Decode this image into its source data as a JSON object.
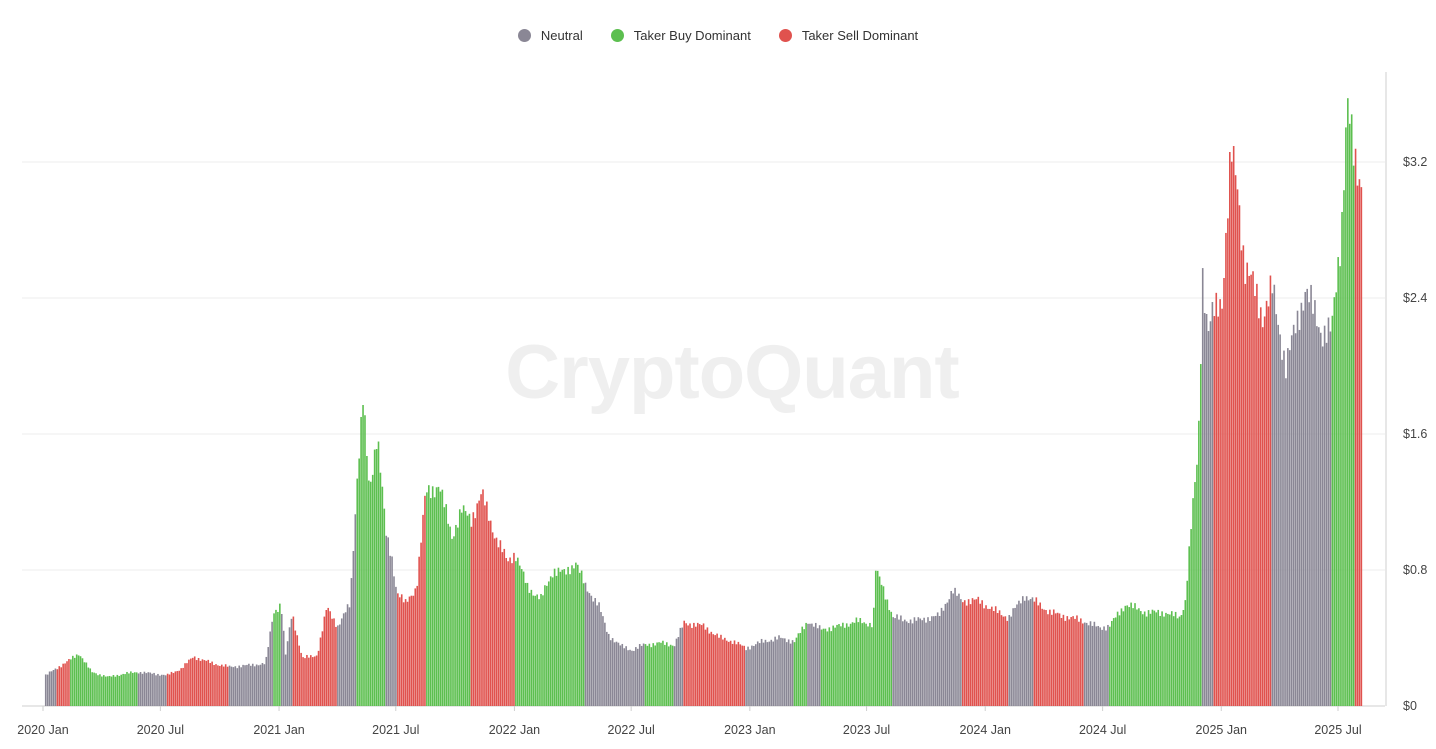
{
  "legend": [
    {
      "label": "Neutral",
      "color": "#8a8795"
    },
    {
      "label": "Taker Buy Dominant",
      "color": "#5cbf4f"
    },
    {
      "label": "Taker Sell Dominant",
      "color": "#e0524e"
    }
  ],
  "watermark": "CryptoQuant",
  "chart_data": {
    "type": "bar",
    "title": "",
    "xlabel": "",
    "ylabel": "",
    "ylim": [
      0,
      3.2
    ],
    "y_ticks": [
      "$0",
      "$0.8",
      "$1.6",
      "$2.4",
      "$3.2"
    ],
    "y_tick_values": [
      0,
      0.8,
      1.6,
      2.4,
      3.2
    ],
    "y_axis_position": "right",
    "grid": true,
    "legend_position": "top-center",
    "x_ticks": [
      "2020 Jan",
      "2020 Jul",
      "2021 Jan",
      "2021 Jul",
      "2022 Jan",
      "2022 Jul",
      "2023 Jan",
      "2023 Jul",
      "2024 Jan",
      "2024 Jul",
      "2025 Jan",
      "2025 Jul"
    ],
    "series_colors": {
      "neutral": "#8a8795",
      "buy": "#5cbf4f",
      "sell": "#e0524e"
    },
    "points": [
      {
        "date": "2020-01-04",
        "value": 0.18,
        "regime": "neutral"
      },
      {
        "date": "2020-01-20",
        "value": 0.22,
        "regime": "sell"
      },
      {
        "date": "2020-02-10",
        "value": 0.27,
        "regime": "buy"
      },
      {
        "date": "2020-02-25",
        "value": 0.31,
        "regime": "buy"
      },
      {
        "date": "2020-03-15",
        "value": 0.2,
        "regime": "buy"
      },
      {
        "date": "2020-04-10",
        "value": 0.17,
        "regime": "buy"
      },
      {
        "date": "2020-05-05",
        "value": 0.19,
        "regime": "buy"
      },
      {
        "date": "2020-05-25",
        "value": 0.2,
        "regime": "neutral"
      },
      {
        "date": "2020-06-20",
        "value": 0.19,
        "regime": "neutral"
      },
      {
        "date": "2020-07-10",
        "value": 0.18,
        "regime": "sell"
      },
      {
        "date": "2020-08-01",
        "value": 0.22,
        "regime": "sell"
      },
      {
        "date": "2020-08-20",
        "value": 0.29,
        "regime": "sell"
      },
      {
        "date": "2020-09-20",
        "value": 0.25,
        "regime": "sell"
      },
      {
        "date": "2020-10-15",
        "value": 0.23,
        "regime": "neutral"
      },
      {
        "date": "2020-11-15",
        "value": 0.24,
        "regime": "neutral"
      },
      {
        "date": "2020-12-10",
        "value": 0.25,
        "regime": "neutral"
      },
      {
        "date": "2020-12-22",
        "value": 0.55,
        "regime": "buy"
      },
      {
        "date": "2021-01-03",
        "value": 0.6,
        "regime": "neutral"
      },
      {
        "date": "2021-01-10",
        "value": 0.3,
        "regime": "neutral"
      },
      {
        "date": "2021-01-20",
        "value": 0.55,
        "regime": "sell"
      },
      {
        "date": "2021-02-05",
        "value": 0.28,
        "regime": "sell"
      },
      {
        "date": "2021-02-28",
        "value": 0.3,
        "regime": "sell"
      },
      {
        "date": "2021-03-15",
        "value": 0.58,
        "regime": "sell"
      },
      {
        "date": "2021-04-01",
        "value": 0.47,
        "regime": "neutral"
      },
      {
        "date": "2021-04-20",
        "value": 0.6,
        "regime": "neutral"
      },
      {
        "date": "2021-05-01",
        "value": 1.35,
        "regime": "buy"
      },
      {
        "date": "2021-05-10",
        "value": 1.8,
        "regime": "buy"
      },
      {
        "date": "2021-05-20",
        "value": 1.25,
        "regime": "buy"
      },
      {
        "date": "2021-06-01",
        "value": 1.62,
        "regime": "buy"
      },
      {
        "date": "2021-06-15",
        "value": 1.0,
        "regime": "neutral"
      },
      {
        "date": "2021-06-25",
        "value": 0.85,
        "regime": "neutral"
      },
      {
        "date": "2021-07-01",
        "value": 0.68,
        "regime": "sell"
      },
      {
        "date": "2021-07-15",
        "value": 0.6,
        "regime": "sell"
      },
      {
        "date": "2021-08-01",
        "value": 0.7,
        "regime": "sell"
      },
      {
        "date": "2021-08-15",
        "value": 1.25,
        "regime": "buy"
      },
      {
        "date": "2021-09-05",
        "value": 1.3,
        "regime": "buy"
      },
      {
        "date": "2021-09-25",
        "value": 1.0,
        "regime": "buy"
      },
      {
        "date": "2021-10-10",
        "value": 1.15,
        "regime": "buy"
      },
      {
        "date": "2021-10-25",
        "value": 1.1,
        "regime": "sell"
      },
      {
        "date": "2021-11-10",
        "value": 1.25,
        "regime": "sell"
      },
      {
        "date": "2021-12-01",
        "value": 1.0,
        "regime": "sell"
      },
      {
        "date": "2021-12-20",
        "value": 0.85,
        "regime": "sell"
      },
      {
        "date": "2022-01-01",
        "value": 0.9,
        "regime": "buy"
      },
      {
        "date": "2022-01-20",
        "value": 0.7,
        "regime": "buy"
      },
      {
        "date": "2022-02-10",
        "value": 0.63,
        "regime": "buy"
      },
      {
        "date": "2022-03-01",
        "value": 0.8,
        "regime": "buy"
      },
      {
        "date": "2022-03-20",
        "value": 0.78,
        "regime": "buy"
      },
      {
        "date": "2022-04-05",
        "value": 0.85,
        "regime": "buy"
      },
      {
        "date": "2022-04-20",
        "value": 0.7,
        "regime": "neutral"
      },
      {
        "date": "2022-05-10",
        "value": 0.6,
        "regime": "neutral"
      },
      {
        "date": "2022-05-25",
        "value": 0.42,
        "regime": "neutral"
      },
      {
        "date": "2022-06-15",
        "value": 0.35,
        "regime": "neutral"
      },
      {
        "date": "2022-07-01",
        "value": 0.33,
        "regime": "neutral"
      },
      {
        "date": "2022-07-20",
        "value": 0.36,
        "regime": "buy"
      },
      {
        "date": "2022-08-15",
        "value": 0.37,
        "regime": "buy"
      },
      {
        "date": "2022-09-05",
        "value": 0.36,
        "regime": "neutral"
      },
      {
        "date": "2022-09-20",
        "value": 0.49,
        "regime": "sell"
      },
      {
        "date": "2022-10-20",
        "value": 0.47,
        "regime": "sell"
      },
      {
        "date": "2022-11-15",
        "value": 0.4,
        "regime": "sell"
      },
      {
        "date": "2022-12-05",
        "value": 0.38,
        "regime": "sell"
      },
      {
        "date": "2022-12-25",
        "value": 0.34,
        "regime": "neutral"
      },
      {
        "date": "2023-01-20",
        "value": 0.38,
        "regime": "neutral"
      },
      {
        "date": "2023-02-15",
        "value": 0.4,
        "regime": "neutral"
      },
      {
        "date": "2023-03-10",
        "value": 0.38,
        "regime": "buy"
      },
      {
        "date": "2023-03-31",
        "value": 0.5,
        "regime": "neutral"
      },
      {
        "date": "2023-04-20",
        "value": 0.45,
        "regime": "buy"
      },
      {
        "date": "2023-05-20",
        "value": 0.47,
        "regime": "buy"
      },
      {
        "date": "2023-06-15",
        "value": 0.5,
        "regime": "buy"
      },
      {
        "date": "2023-07-10",
        "value": 0.48,
        "regime": "buy"
      },
      {
        "date": "2023-07-14",
        "value": 0.8,
        "regime": "buy"
      },
      {
        "date": "2023-07-25",
        "value": 0.7,
        "regime": "buy"
      },
      {
        "date": "2023-08-10",
        "value": 0.52,
        "regime": "neutral"
      },
      {
        "date": "2023-09-10",
        "value": 0.5,
        "regime": "neutral"
      },
      {
        "date": "2023-10-20",
        "value": 0.53,
        "regime": "neutral"
      },
      {
        "date": "2023-11-10",
        "value": 0.68,
        "regime": "neutral"
      },
      {
        "date": "2023-11-25",
        "value": 0.62,
        "regime": "sell"
      },
      {
        "date": "2023-12-20",
        "value": 0.62,
        "regime": "sell"
      },
      {
        "date": "2024-01-20",
        "value": 0.55,
        "regime": "sell"
      },
      {
        "date": "2024-02-05",
        "value": 0.52,
        "regime": "neutral"
      },
      {
        "date": "2024-03-01",
        "value": 0.65,
        "regime": "neutral"
      },
      {
        "date": "2024-03-15",
        "value": 0.62,
        "regime": "sell"
      },
      {
        "date": "2024-04-10",
        "value": 0.55,
        "regime": "sell"
      },
      {
        "date": "2024-05-10",
        "value": 0.52,
        "regime": "sell"
      },
      {
        "date": "2024-06-01",
        "value": 0.5,
        "regime": "neutral"
      },
      {
        "date": "2024-06-25",
        "value": 0.46,
        "regime": "neutral"
      },
      {
        "date": "2024-07-10",
        "value": 0.47,
        "regime": "buy"
      },
      {
        "date": "2024-08-05",
        "value": 0.6,
        "regime": "buy"
      },
      {
        "date": "2024-09-05",
        "value": 0.55,
        "regime": "buy"
      },
      {
        "date": "2024-10-05",
        "value": 0.55,
        "regime": "buy"
      },
      {
        "date": "2024-10-28",
        "value": 0.52,
        "regime": "buy"
      },
      {
        "date": "2024-11-05",
        "value": 0.62,
        "regime": "buy"
      },
      {
        "date": "2024-11-15",
        "value": 1.1,
        "regime": "buy"
      },
      {
        "date": "2024-11-25",
        "value": 1.5,
        "regime": "buy"
      },
      {
        "date": "2024-12-02",
        "value": 2.55,
        "regime": "neutral"
      },
      {
        "date": "2024-12-10",
        "value": 2.2,
        "regime": "neutral"
      },
      {
        "date": "2024-12-18",
        "value": 2.3,
        "regime": "sell"
      },
      {
        "date": "2025-01-01",
        "value": 2.4,
        "regime": "sell"
      },
      {
        "date": "2025-01-15",
        "value": 3.25,
        "regime": "sell"
      },
      {
        "date": "2025-01-25",
        "value": 3.05,
        "regime": "sell"
      },
      {
        "date": "2025-02-05",
        "value": 2.6,
        "regime": "sell"
      },
      {
        "date": "2025-02-20",
        "value": 2.45,
        "regime": "sell"
      },
      {
        "date": "2025-03-05",
        "value": 2.3,
        "regime": "sell"
      },
      {
        "date": "2025-03-20",
        "value": 2.45,
        "regime": "neutral"
      },
      {
        "date": "2025-04-10",
        "value": 2.0,
        "regime": "neutral"
      },
      {
        "date": "2025-05-10",
        "value": 2.45,
        "regime": "neutral"
      },
      {
        "date": "2025-06-05",
        "value": 2.2,
        "regime": "neutral"
      },
      {
        "date": "2025-06-20",
        "value": 2.2,
        "regime": "buy"
      },
      {
        "date": "2025-07-05",
        "value": 2.8,
        "regime": "buy"
      },
      {
        "date": "2025-07-14",
        "value": 3.55,
        "regime": "buy"
      },
      {
        "date": "2025-07-25",
        "value": 3.2,
        "regime": "sell"
      },
      {
        "date": "2025-08-05",
        "value": 3.1,
        "regime": "sell"
      }
    ]
  }
}
